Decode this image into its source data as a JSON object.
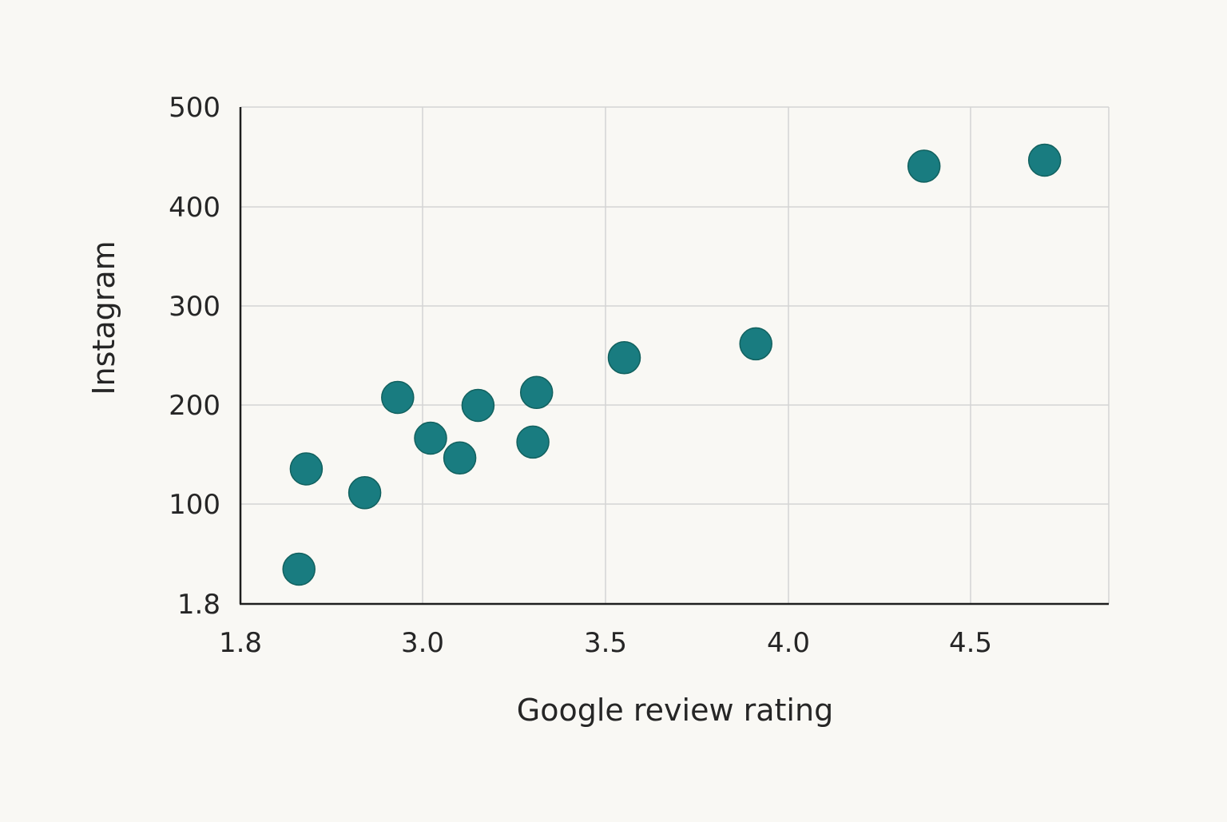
{
  "colors": {
    "background": "#f9f8f4",
    "point": "#197c80",
    "point_stroke": "#12615f",
    "grid": "#d4d4d4",
    "axis": "#1e1e1e"
  },
  "chart_data": {
    "type": "scatter",
    "title": "",
    "xlabel": "Google review rating",
    "ylabel": "Instagram",
    "x_ticks": [
      "1.8",
      "3.0",
      "3.5",
      "4.0",
      "4.5"
    ],
    "y_ticks": [
      "1.8",
      "100",
      "200",
      "300",
      "400",
      "500"
    ],
    "grid": true,
    "points": [
      {
        "x": 2.68,
        "y": 136
      },
      {
        "x": 2.66,
        "y": 35
      },
      {
        "x": 2.84,
        "y": 112
      },
      {
        "x": 2.93,
        "y": 208
      },
      {
        "x": 3.02,
        "y": 167
      },
      {
        "x": 3.1,
        "y": 147
      },
      {
        "x": 3.15,
        "y": 200
      },
      {
        "x": 3.3,
        "y": 163
      },
      {
        "x": 3.31,
        "y": 213
      },
      {
        "x": 3.55,
        "y": 248
      },
      {
        "x": 3.91,
        "y": 262
      },
      {
        "x": 4.37,
        "y": 441
      },
      {
        "x": 4.7,
        "y": 447
      }
    ]
  }
}
